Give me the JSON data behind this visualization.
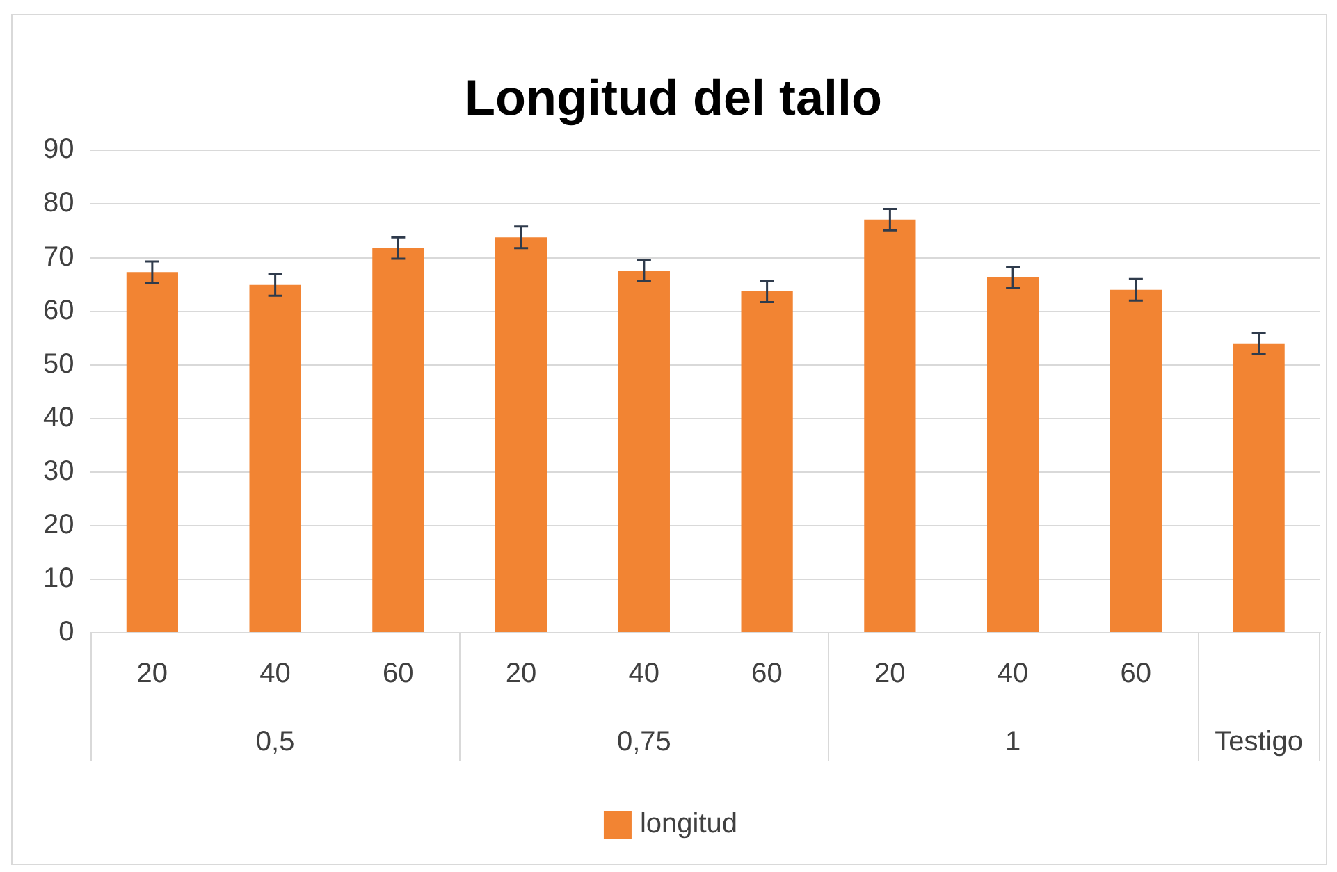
{
  "chart_data": {
    "type": "bar",
    "title": "Longitud del tallo",
    "categories": [
      "20",
      "40",
      "60",
      "20",
      "40",
      "60",
      "20",
      "40",
      "60",
      null
    ],
    "series": [
      {
        "name": "longitud",
        "color": "#f28433",
        "values": [
          67.3,
          64.9,
          71.8,
          73.8,
          67.6,
          63.7,
          77.1,
          66.3,
          64.0,
          54.0
        ],
        "errors": [
          2,
          2,
          2,
          2,
          2,
          2,
          2,
          2,
          2,
          2
        ]
      }
    ],
    "annotations": [
      "0,5",
      "0,75",
      "1",
      "Testigo"
    ],
    "ylim": [
      0,
      90
    ],
    "yticks": [
      0,
      10,
      20,
      30,
      40,
      50,
      60,
      70,
      80,
      90
    ],
    "grid": "y",
    "legend": "bottom"
  }
}
